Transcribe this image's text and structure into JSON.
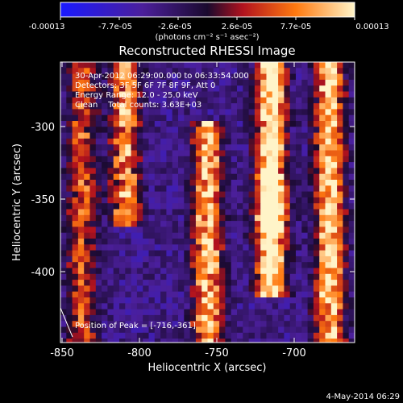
{
  "colorbar": {
    "ticks": [
      "-0.00013",
      "-7.7e-05",
      "-2.6e-05",
      "2.6e-05",
      "7.7e-05",
      "0.00013"
    ],
    "unit_label": "(photons cm⁻² s⁻¹ asec⁻²)",
    "range": [
      -0.00013,
      0.00013
    ],
    "colors": [
      "#1a1aff",
      "#4b1f9a",
      "#1a0a2e",
      "#b1121e",
      "#ff7a10",
      "#fff4c8"
    ]
  },
  "chart_data": {
    "type": "heatmap",
    "title": "Reconstructed RHESSI Image",
    "xlabel": "Heliocentric X (arcsec)",
    "ylabel": "Heliocentric Y (arcsec)",
    "xlim": [
      -852,
      -662
    ],
    "ylim": [
      -448,
      -263
    ],
    "xticks": [
      -850,
      -800,
      -750,
      -700
    ],
    "yticks": [
      -300,
      -350,
      -400
    ],
    "grid": false,
    "colormap": "RHESSI signed flux (blue-purple negative, red-yellow-white positive)",
    "annotations": [
      "30-Apr-2012 06:29:00.000 to 06:33:54.000",
      "Detectors: 3F 5F 6F 7F 8F 9F, Att 0",
      "Energy Range: 12.0 - 25.0 keV",
      "Clean    Total counts: 3.63E+03"
    ],
    "peak_label": "Position of Peak = [-716,-361]",
    "peak_position": [
      -716,
      -361
    ],
    "bright_bands": [
      {
        "x_center": -838,
        "y_range": [
          -448,
          -263
        ],
        "strength": 0.55
      },
      {
        "x_center": -810,
        "y_range": [
          -370,
          -263
        ],
        "strength": 0.7
      },
      {
        "x_center": -757,
        "y_range": [
          -448,
          -300
        ],
        "strength": 0.85
      },
      {
        "x_center": -716,
        "y_range": [
          -420,
          -263
        ],
        "strength": 1.0
      },
      {
        "x_center": -678,
        "y_range": [
          -448,
          -263
        ],
        "strength": 0.9
      }
    ]
  },
  "footer": {
    "timestamp": "4-May-2014 06:29"
  }
}
